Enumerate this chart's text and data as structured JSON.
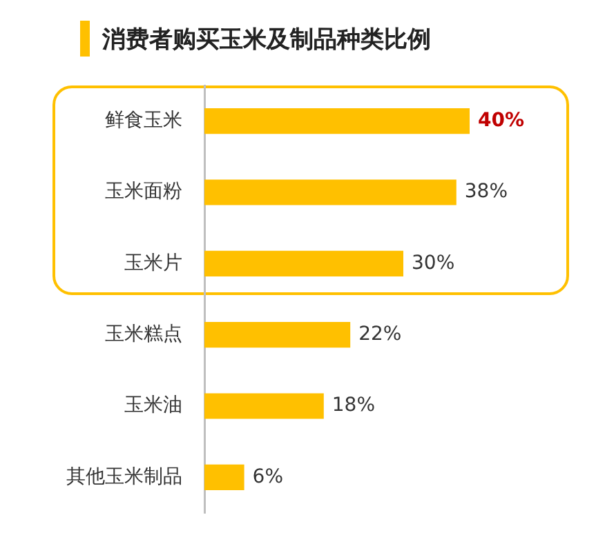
{
  "chart_data": {
    "type": "bar",
    "orientation": "horizontal",
    "title": "消费者购买玉米及制品种类比例",
    "categories": [
      "鲜食玉米",
      "玉米面粉",
      "玉米片",
      "玉米糕点",
      "玉米油",
      "其他玉米制品"
    ],
    "values": [
      40,
      38,
      30,
      22,
      18,
      6
    ],
    "value_labels": [
      "40%",
      "38%",
      "30%",
      "22%",
      "18%",
      "6%"
    ],
    "color": "#ffc000",
    "legend": false
  }
}
